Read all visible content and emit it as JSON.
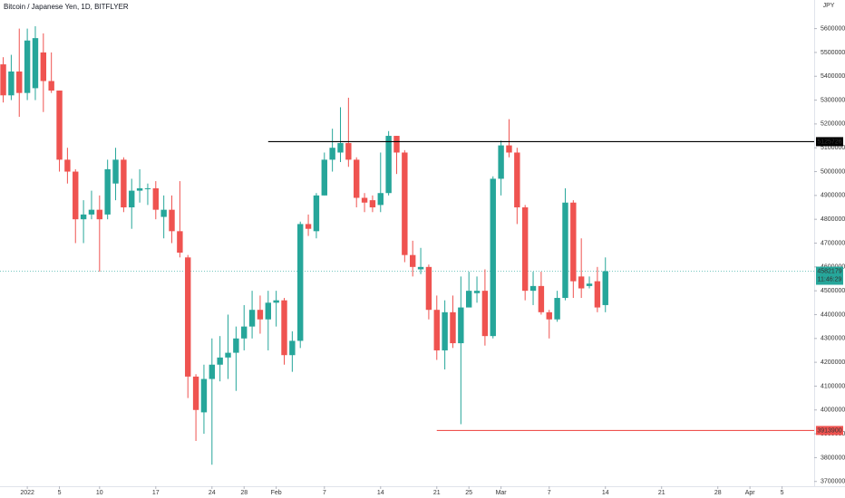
{
  "chart_data": {
    "type": "candlestick",
    "title": "Bitcoin / Japanese Yen, 1D, BITFLYER",
    "currency": "JPY",
    "up_color": "#26a69a",
    "down_color": "#ef5350",
    "x": [
      -3,
      -2,
      -1,
      0,
      1,
      2,
      3,
      4,
      5,
      6,
      7,
      8,
      9,
      10,
      11,
      12,
      13,
      14,
      15,
      16,
      17,
      18,
      19,
      20,
      21,
      22,
      23,
      24,
      25,
      26,
      27,
      28,
      29,
      30,
      31,
      32,
      33,
      34,
      35,
      36,
      37,
      38,
      39,
      40,
      41,
      42,
      43,
      44,
      45,
      46,
      47,
      48,
      49,
      50,
      51,
      52,
      53,
      54,
      55,
      56,
      57,
      58,
      59,
      60,
      61,
      62,
      63,
      64,
      65,
      66,
      67,
      68,
      69,
      70,
      71,
      72
    ],
    "ohlc": [
      [
        5450000,
        5480000,
        5290000,
        5320000
      ],
      [
        5320000,
        5490000,
        5300000,
        5420000
      ],
      [
        5420000,
        5600000,
        5230000,
        5330000
      ],
      [
        5330000,
        5600000,
        5300000,
        5550000
      ],
      [
        5350000,
        5610000,
        5300000,
        5560000
      ],
      [
        5500000,
        5580000,
        5250000,
        5380000
      ],
      [
        5380000,
        5500000,
        5330000,
        5340000
      ],
      [
        5340000,
        5340000,
        5000000,
        5050000
      ],
      [
        5050000,
        5100000,
        4950000,
        5000000
      ],
      [
        5000000,
        5010000,
        4700000,
        4800000
      ],
      [
        4800000,
        4880000,
        4700000,
        4820000
      ],
      [
        4820000,
        4920000,
        4800000,
        4840000
      ],
      [
        4840000,
        4900000,
        4580000,
        4800000
      ],
      [
        4820000,
        5050000,
        4800000,
        5010000
      ],
      [
        4950000,
        5100000,
        4880000,
        5050000
      ],
      [
        5050000,
        5060000,
        4830000,
        4850000
      ],
      [
        4850000,
        4970000,
        4760000,
        4920000
      ],
      [
        4920000,
        5010000,
        4870000,
        4930000
      ],
      [
        4930000,
        4950000,
        4860000,
        4930000
      ],
      [
        4930000,
        4960000,
        4800000,
        4840000
      ],
      [
        4810000,
        4900000,
        4720000,
        4840000
      ],
      [
        4840000,
        4900000,
        4700000,
        4750000
      ],
      [
        4750000,
        4960000,
        4640000,
        4660000
      ],
      [
        4640000,
        4650000,
        4050000,
        4140000
      ],
      [
        4140000,
        4150000,
        3870000,
        4000000
      ],
      [
        3990000,
        4190000,
        3900000,
        4130000
      ],
      [
        4130000,
        4300000,
        3770000,
        4190000
      ],
      [
        4190000,
        4310000,
        4120000,
        4220000
      ],
      [
        4220000,
        4400000,
        4130000,
        4240000
      ],
      [
        4240000,
        4350000,
        4080000,
        4300000
      ],
      [
        4300000,
        4440000,
        4250000,
        4350000
      ],
      [
        4350000,
        4500000,
        4300000,
        4420000
      ],
      [
        4420000,
        4480000,
        4320000,
        4380000
      ],
      [
        4380000,
        4500000,
        4250000,
        4450000
      ],
      [
        4450000,
        4500000,
        4350000,
        4460000
      ],
      [
        4460000,
        4470000,
        4190000,
        4230000
      ],
      [
        4230000,
        4330000,
        4160000,
        4290000
      ],
      [
        4290000,
        4790000,
        4260000,
        4780000
      ],
      [
        4780000,
        4820000,
        4730000,
        4760000
      ],
      [
        4750000,
        4910000,
        4720000,
        4900000
      ],
      [
        4900000,
        5080000,
        4900000,
        5050000
      ],
      [
        5050000,
        5180000,
        5000000,
        5100000
      ],
      [
        5080000,
        5270000,
        5040000,
        5120000
      ],
      [
        5120000,
        5310000,
        5020000,
        5050000
      ],
      [
        5050000,
        5060000,
        4850000,
        4890000
      ],
      [
        4890000,
        4910000,
        4830000,
        4870000
      ],
      [
        4880000,
        4900000,
        4830000,
        4850000
      ],
      [
        4860000,
        5080000,
        4830000,
        4910000
      ],
      [
        4910000,
        5170000,
        4900000,
        5150000
      ],
      [
        5150000,
        5150000,
        4990000,
        5080000
      ],
      [
        5080000,
        5090000,
        4620000,
        4650000
      ],
      [
        4650000,
        4710000,
        4560000,
        4600000
      ],
      [
        4590000,
        4680000,
        4570000,
        4600000
      ],
      [
        4600000,
        4610000,
        4380000,
        4420000
      ],
      [
        4420000,
        4480000,
        4210000,
        4250000
      ],
      [
        4250000,
        4460000,
        4170000,
        4410000
      ],
      [
        4410000,
        4480000,
        4260000,
        4280000
      ],
      [
        4280000,
        4560000,
        3940000,
        4430000
      ],
      [
        4430000,
        4580000,
        4450000,
        4500000
      ],
      [
        4490000,
        4560000,
        4450000,
        4500000
      ],
      [
        4500000,
        4590000,
        4270000,
        4310000
      ],
      [
        4310000,
        4980000,
        4300000,
        4970000
      ],
      [
        4970000,
        5130000,
        4900000,
        5110000
      ],
      [
        5110000,
        5220000,
        5060000,
        5080000
      ],
      [
        5080000,
        5100000,
        4780000,
        4850000
      ],
      [
        4850000,
        4860000,
        4460000,
        4500000
      ],
      [
        4500000,
        4580000,
        4440000,
        4520000
      ],
      [
        4520000,
        4580000,
        4400000,
        4410000
      ],
      [
        4410000,
        4420000,
        4300000,
        4380000
      ],
      [
        4380000,
        4500000,
        4370000,
        4470000
      ],
      [
        4470000,
        4930000,
        4460000,
        4870000
      ],
      [
        4870000,
        4880000,
        4470000,
        4540000
      ],
      [
        4560000,
        4720000,
        4470000,
        4510000
      ],
      [
        4520000,
        4560000,
        4510000,
        4530000
      ],
      [
        4540000,
        4600000,
        4410000,
        4430000
      ],
      [
        4440000,
        4640000,
        4410000,
        4582179
      ]
    ],
    "levels": [
      {
        "value": 5125726,
        "x": 30,
        "color": "#000000"
      },
      {
        "value": 3913900,
        "x": 51,
        "color": "#ef5350"
      }
    ],
    "last_price": 4582179,
    "countdown": "11:46:29",
    "xlim": [
      -3.4,
      98
    ],
    "xticks": [
      {
        "value": 0,
        "label": "2022"
      },
      {
        "value": 4,
        "label": "5"
      },
      {
        "value": 9,
        "label": "10"
      },
      {
        "value": 16,
        "label": "17"
      },
      {
        "value": 23,
        "label": "24"
      },
      {
        "value": 27,
        "label": "28"
      },
      {
        "value": 31,
        "label": "Feb"
      },
      {
        "value": 37,
        "label": "7"
      },
      {
        "value": 44,
        "label": "14"
      },
      {
        "value": 51,
        "label": "21"
      },
      {
        "value": 55,
        "label": "25"
      },
      {
        "value": 59,
        "label": "Mar"
      },
      {
        "value": 65,
        "label": "7"
      },
      {
        "value": 72,
        "label": "14"
      },
      {
        "value": 79,
        "label": "21"
      },
      {
        "value": 86,
        "label": "28"
      },
      {
        "value": 90,
        "label": "Apr"
      },
      {
        "value": 94,
        "label": "5"
      }
    ],
    "ylim": [
      3680000,
      5720000
    ],
    "yticks": [
      3700000,
      3800000,
      3900000,
      4000000,
      4100000,
      4200000,
      4300000,
      4400000,
      4500000,
      4600000,
      4700000,
      4800000,
      4900000,
      5000000,
      5100000,
      5200000,
      5300000,
      5400000,
      5500000,
      5600000
    ]
  }
}
